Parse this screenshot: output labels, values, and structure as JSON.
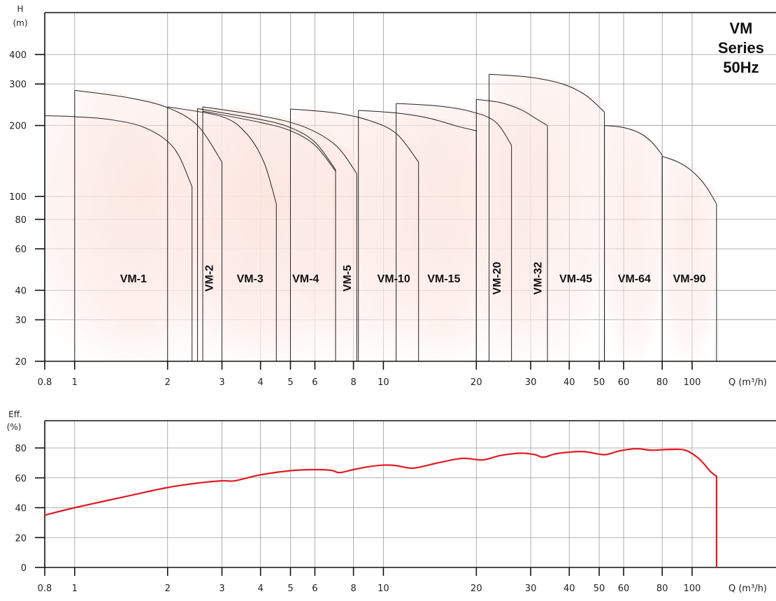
{
  "chart_data": [
    {
      "type": "area",
      "title": [
        "VM",
        "Series",
        "50Hz"
      ],
      "ylabel": [
        "H",
        "(m)"
      ],
      "xlabel": "Q (m³/h)",
      "x_scale": "log",
      "y_scale": "log",
      "xlim": [
        0.8,
        130
      ],
      "ylim": [
        20,
        500
      ],
      "x_ticks": [
        0.8,
        1,
        2,
        3,
        4,
        5,
        6,
        8,
        10,
        20,
        30,
        40,
        50,
        60,
        80,
        100
      ],
      "x_tick_labels": [
        "0.8",
        "1",
        "2",
        "3",
        "4",
        "5",
        "6",
        "8",
        "10",
        "20",
        "30",
        "40",
        "50",
        "60",
        "80",
        "100"
      ],
      "y_ticks": [
        20,
        30,
        40,
        60,
        80,
        100,
        200,
        300,
        400
      ],
      "y_tick_labels": [
        "20",
        "30",
        "40",
        "60",
        "80",
        "100",
        "200",
        "300",
        "400"
      ],
      "grid": true,
      "fill_color": "#fbe3dd",
      "series": [
        {
          "name": "VM-1",
          "curves": [
            [
              [
                0.8,
                220
              ],
              [
                1.0,
                218
              ],
              [
                1.3,
                212
              ],
              [
                1.7,
                195
              ],
              [
                2.1,
                160
              ],
              [
                2.4,
                110
              ]
            ]
          ],
          "q_min": 0.8,
          "q_max": 2.4,
          "h_min": 20
        },
        {
          "name": "VM-2",
          "curves": [
            [
              [
                1.0,
                282
              ],
              [
                1.5,
                262
              ],
              [
                2.0,
                238
              ],
              [
                2.5,
                200
              ],
              [
                3.0,
                140
              ]
            ]
          ],
          "q_min": 1.0,
          "q_max": 3.0,
          "h_min": 20
        },
        {
          "name": "VM-3",
          "curves": [
            [
              [
                2.0,
                240
              ],
              [
                3.0,
                218
              ],
              [
                3.6,
                185
              ],
              [
                4.1,
                140
              ],
              [
                4.5,
                93
              ]
            ]
          ],
          "q_min": 2.0,
          "q_max": 4.5,
          "h_min": 20
        },
        {
          "name": "VM-4",
          "curves": [
            [
              [
                2.5,
                236
              ],
              [
                4.0,
                212
              ],
              [
                5.0,
                196
              ],
              [
                6.0,
                170
              ],
              [
                7.0,
                130
              ]
            ],
            [
              [
                2.6,
                230
              ],
              [
                4.0,
                206
              ],
              [
                5.0,
                190
              ],
              [
                6.0,
                165
              ],
              [
                7.0,
                128
              ]
            ]
          ],
          "q_min": 2.5,
          "q_max": 7.0,
          "h_min": 20
        },
        {
          "name": "VM-5",
          "curves": [
            [
              [
                2.6,
                240
              ],
              [
                4.0,
                220
              ],
              [
                5.5,
                198
              ],
              [
                7.0,
                165
              ],
              [
                8.2,
                125
              ]
            ]
          ],
          "q_min": 2.6,
          "q_max": 8.2,
          "h_min": 20
        },
        {
          "name": "VM-10",
          "curves": [
            [
              [
                5.0,
                235
              ],
              [
                7.0,
                226
              ],
              [
                9.0,
                210
              ],
              [
                11.0,
                185
              ],
              [
                13.0,
                140
              ]
            ]
          ],
          "q_min": 5.0,
          "q_max": 13.0,
          "h_min": 20
        },
        {
          "name": "VM-15",
          "curves": [
            [
              [
                8.3,
                232
              ],
              [
                11.0,
                226
              ],
              [
                14.0,
                215
              ],
              [
                17.5,
                198
              ],
              [
                20.0,
                190
              ]
            ]
          ],
          "q_min": 8.3,
          "q_max": 20.0,
          "h_min": 20
        },
        {
          "name": "VM-20",
          "curves": [
            [
              [
                11.0,
                248
              ],
              [
                15.0,
                242
              ],
              [
                19.0,
                230
              ],
              [
                23.0,
                208
              ],
              [
                26.0,
                165
              ]
            ]
          ],
          "q_min": 11.0,
          "q_max": 26.0,
          "h_min": 20
        },
        {
          "name": "VM-32",
          "curves": [
            [
              [
                20.0,
                258
              ],
              [
                24.0,
                250
              ],
              [
                28.0,
                233
              ],
              [
                31.0,
                215
              ],
              [
                34.0,
                200
              ]
            ]
          ],
          "q_min": 20.0,
          "q_max": 34.0,
          "h_min": 20
        },
        {
          "name": "VM-45",
          "curves": [
            [
              [
                22.0,
                330
              ],
              [
                30.0,
                320
              ],
              [
                38.0,
                300
              ],
              [
                45.0,
                270
              ],
              [
                52.0,
                228
              ]
            ]
          ],
          "q_min": 22.0,
          "q_max": 52.0,
          "h_min": 20
        },
        {
          "name": "VM-64",
          "curves": [
            [
              [
                52.0,
                200
              ],
              [
                60.0,
                196
              ],
              [
                68.0,
                185
              ],
              [
                74.0,
                170
              ],
              [
                80.0,
                150
              ]
            ]
          ],
          "q_min": 52.0,
          "q_max": 80.0,
          "h_min": 20
        },
        {
          "name": "VM-90",
          "curves": [
            [
              [
                80.0,
                148
              ],
              [
                90.0,
                140
              ],
              [
                100.0,
                128
              ],
              [
                110.0,
                112
              ],
              [
                120.0,
                93
              ]
            ]
          ],
          "q_min": 80.0,
          "q_max": 120.0,
          "h_min": 20
        }
      ],
      "region_labels": [
        {
          "text": "VM-1",
          "x": 1.55,
          "y": 45,
          "vertical": false
        },
        {
          "text": "VM-2",
          "x": 2.72,
          "y": 45,
          "vertical": true
        },
        {
          "text": "VM-3",
          "x": 3.7,
          "y": 45,
          "vertical": false
        },
        {
          "text": "VM-4",
          "x": 5.6,
          "y": 45,
          "vertical": false
        },
        {
          "text": "VM-5",
          "x": 7.6,
          "y": 45,
          "vertical": true
        },
        {
          "text": "VM-10",
          "x": 10.8,
          "y": 45,
          "vertical": false
        },
        {
          "text": "VM-15",
          "x": 15.7,
          "y": 45,
          "vertical": false
        },
        {
          "text": "VM-20",
          "x": 23.2,
          "y": 45,
          "vertical": true
        },
        {
          "text": "VM-32",
          "x": 31.5,
          "y": 45,
          "vertical": true
        },
        {
          "text": "VM-45",
          "x": 42.0,
          "y": 45,
          "vertical": false
        },
        {
          "text": "VM-64",
          "x": 65.0,
          "y": 45,
          "vertical": false
        },
        {
          "text": "VM-90",
          "x": 98.0,
          "y": 45,
          "vertical": false
        }
      ]
    },
    {
      "type": "line",
      "ylabel": [
        "Eff.",
        "(%)"
      ],
      "xlabel": "Q (m³/h)",
      "x_scale": "log",
      "xlim": [
        0.8,
        130
      ],
      "ylim": [
        0,
        90
      ],
      "x_ticks": [
        0.8,
        1,
        2,
        3,
        4,
        5,
        6,
        8,
        10,
        20,
        30,
        40,
        50,
        60,
        80,
        100
      ],
      "x_tick_labels": [
        "0.8",
        "1",
        "2",
        "3",
        "4",
        "5",
        "6",
        "8",
        "10",
        "20",
        "30",
        "40",
        "50",
        "60",
        "80",
        "100"
      ],
      "y_ticks": [
        0,
        20,
        40,
        60,
        80
      ],
      "y_tick_labels": [
        "0",
        "20",
        "40",
        "60",
        "80"
      ],
      "grid": true,
      "line_color": "#e21b23",
      "series": [
        {
          "x": [
            0.8,
            1.0,
            1.5,
            2.0,
            2.5,
            3.0,
            3.3,
            4.0,
            5.0,
            6.0,
            6.8,
            7.2,
            8.0,
            9.0,
            10.0,
            11.0,
            12.5,
            15.0,
            18.0,
            21.0,
            24.0,
            28.0,
            31.0,
            33.0,
            36.0,
            40.0,
            45.0,
            52.0,
            58.0,
            66.0,
            74.0,
            85.0,
            95.0,
            105.0,
            115.0,
            120.0,
            120.0
          ],
          "y": [
            35,
            40,
            48,
            53.5,
            56.5,
            58,
            58,
            62,
            64.8,
            65.5,
            65,
            63.5,
            65.5,
            67.5,
            68.5,
            68.2,
            66.5,
            70,
            73,
            72,
            75,
            76.5,
            75.5,
            73.8,
            76,
            77.2,
            77.5,
            75.5,
            78,
            79.5,
            78.5,
            79,
            78.5,
            73,
            64,
            61,
            0
          ]
        }
      ]
    }
  ]
}
